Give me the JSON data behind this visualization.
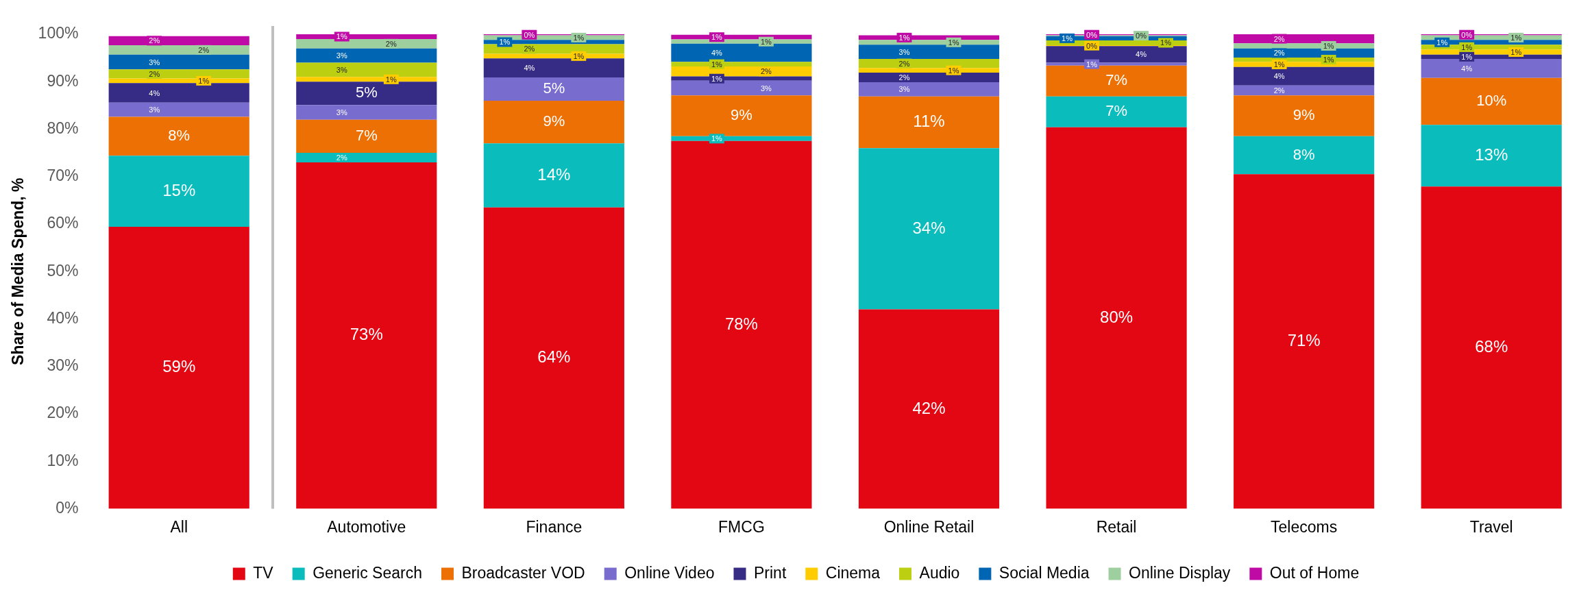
{
  "chart_data": {
    "type": "bar",
    "stacked": true,
    "ylabel": "Share of Media Spend, %",
    "categories": [
      "All",
      "Automotive",
      "Finance",
      "FMCG",
      "Online Retail",
      "Retail",
      "Telecoms",
      "Travel"
    ],
    "ylim": [
      0,
      100
    ],
    "yticks": [
      {
        "value": 0,
        "label": "0%"
      },
      {
        "value": 10,
        "label": "10%"
      },
      {
        "value": 20,
        "label": "20%"
      },
      {
        "value": 30,
        "label": "30%"
      },
      {
        "value": 40,
        "label": "40%"
      },
      {
        "value": 50,
        "label": "50%"
      },
      {
        "value": 60,
        "label": "60%"
      },
      {
        "value": 70,
        "label": "70%"
      },
      {
        "value": 80,
        "label": "80%"
      },
      {
        "value": 90,
        "label": "90%"
      },
      {
        "value": 100,
        "label": "100%"
      }
    ],
    "grid": false,
    "legend": "bottom",
    "series": [
      {
        "name": "TV",
        "color": "#e30613",
        "values": [
          59.4,
          73.0,
          63.5,
          77.5,
          42.0,
          80.4,
          70.5,
          67.9
        ],
        "value_labels": [
          "59%",
          "73%",
          "64%",
          "78%",
          "42%",
          "80%",
          "71%",
          "68%"
        ]
      },
      {
        "name": "Generic Search",
        "color": "#0abcbc",
        "values": [
          15.0,
          2.0,
          13.5,
          1.0,
          34.0,
          6.5,
          8.0,
          13.0
        ],
        "value_labels": [
          "15%",
          "2%",
          "14%",
          "1%",
          "34%",
          "7%",
          "8%",
          "13%"
        ]
      },
      {
        "name": "Broadcaster VOD",
        "color": "#ed7004",
        "values": [
          8.2,
          7.0,
          9.0,
          8.6,
          10.9,
          6.5,
          8.6,
          9.9
        ],
        "value_labels": [
          "8%",
          "7%",
          "9%",
          "9%",
          "11%",
          "7%",
          "9%",
          "10%"
        ]
      },
      {
        "name": "Online Video",
        "color": "#786cce",
        "values": [
          3.0,
          3.1,
          4.9,
          3.1,
          3.0,
          0.6,
          2.1,
          4.0
        ],
        "value_labels": [
          "3%",
          "3%",
          "5%",
          "3%",
          "3%",
          "1%",
          "2%",
          "4%"
        ]
      },
      {
        "name": "Print",
        "color": "#372c85",
        "values": [
          4.1,
          4.9,
          4.0,
          0.9,
          2.0,
          3.5,
          3.9,
          0.9
        ],
        "value_labels": [
          "4%",
          "5%",
          "4%",
          "1%",
          "2%",
          "4%",
          "4%",
          "1%"
        ]
      },
      {
        "name": "Cinema",
        "color": "#ffcc00",
        "values": [
          1.0,
          1.0,
          1.0,
          2.1,
          1.0,
          0.2,
          1.1,
          1.1
        ],
        "value_labels": [
          "1%",
          "1%",
          "1%",
          "2%",
          "1%",
          "0%",
          "1%",
          "1%"
        ]
      },
      {
        "name": "Audio",
        "color": "#bccf10",
        "values": [
          1.9,
          3.0,
          2.0,
          1.0,
          1.9,
          1.0,
          0.9,
          1.0
        ],
        "value_labels": [
          "2%",
          "3%",
          "2%",
          "1%",
          "2%",
          "1%",
          "1%",
          "1%"
        ]
      },
      {
        "name": "Social Media",
        "color": "#0066b3",
        "values": [
          3.1,
          3.0,
          0.9,
          3.8,
          3.0,
          0.9,
          1.9,
          1.0
        ],
        "value_labels": [
          "3%",
          "3%",
          "1%",
          "4%",
          "3%",
          "1%",
          "2%",
          "1%"
        ]
      },
      {
        "name": "Online Display",
        "color": "#9ecf9e",
        "values": [
          2.0,
          2.0,
          1.0,
          0.9,
          1.0,
          0.2,
          1.1,
          1.0
        ],
        "value_labels": [
          "2%",
          "2%",
          "1%",
          "1%",
          "1%",
          "0%",
          "1%",
          "1%"
        ]
      },
      {
        "name": "Out of Home",
        "color": "#bf0aa6",
        "values": [
          1.9,
          1.0,
          0.2,
          1.0,
          1.0,
          0.2,
          1.9,
          0.2
        ],
        "value_labels": [
          "2%",
          "1%",
          "0%",
          "1%",
          "1%",
          "0%",
          "2%",
          "0%"
        ]
      }
    ]
  }
}
